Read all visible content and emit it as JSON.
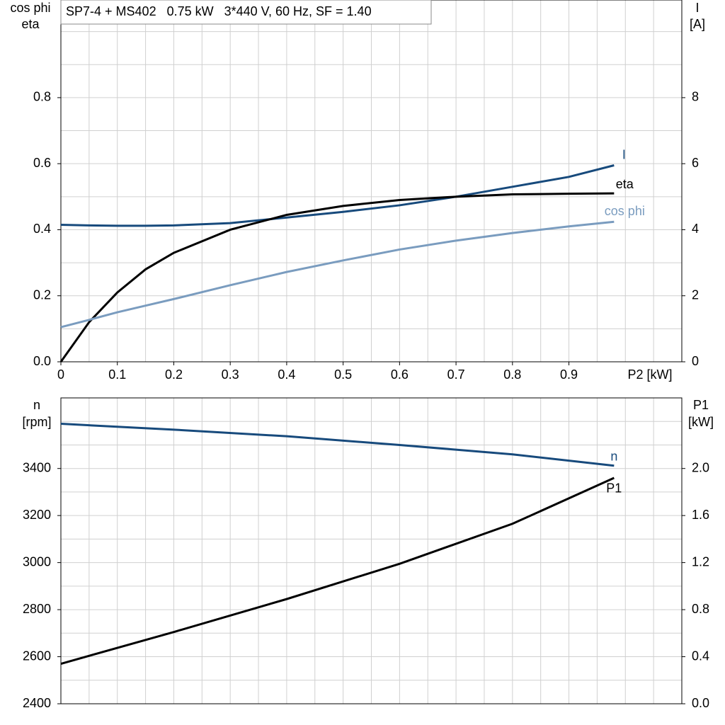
{
  "chart_data": [
    {
      "type": "line",
      "title": "SP7-4 + MS402   0.75 kW   3*440 V, 60 Hz, SF = 1.40",
      "xlabel": "P2 [kW]",
      "ylabel": [
        "cos phi",
        "eta"
      ],
      "y2label": [
        "I",
        "[A]"
      ],
      "x": [
        0,
        0.05,
        0.1,
        0.15,
        0.2,
        0.3,
        0.4,
        0.5,
        0.6,
        0.7,
        0.8,
        0.9,
        0.98
      ],
      "series": [
        {
          "name": "I",
          "color": "#174a7c",
          "axis": "y2",
          "values": [
            4.15,
            4.13,
            4.12,
            4.12,
            4.13,
            4.2,
            4.37,
            4.54,
            4.74,
            5.0,
            5.3,
            5.6,
            5.95
          ]
        },
        {
          "name": "eta",
          "color": "#000000",
          "values": [
            0,
            0.12,
            0.21,
            0.28,
            0.33,
            0.4,
            0.445,
            0.472,
            0.49,
            0.5,
            0.507,
            0.509,
            0.51
          ]
        },
        {
          "name": "cos phi",
          "color": "#7a9cbf",
          "values": [
            0.105,
            0.127,
            0.15,
            0.17,
            0.19,
            0.232,
            0.272,
            0.307,
            0.34,
            0.367,
            0.39,
            0.41,
            0.424
          ]
        }
      ],
      "xlim": [
        0,
        1.1
      ],
      "xticks": [
        0,
        0.1,
        0.2,
        0.3,
        0.4,
        0.5,
        0.6,
        0.7,
        0.8,
        0.9
      ],
      "x_grid": [
        0.05,
        0.1,
        0.15,
        0.2,
        0.25,
        0.3,
        0.35,
        0.4,
        0.45,
        0.5,
        0.55,
        0.6,
        0.65,
        0.7,
        0.75,
        0.8,
        0.85,
        0.9,
        0.95,
        1.0,
        1.05
      ],
      "ylim": [
        0,
        1.1
      ],
      "yticks": [
        {
          "value": 0,
          "label": "0.0"
        },
        0.2,
        0.4,
        0.6,
        0.8
      ],
      "y_grid": [
        0.1,
        0.2,
        0.3,
        0.4,
        0.5,
        0.6,
        0.7,
        0.8,
        0.9,
        1.0
      ],
      "y2lim": [
        0,
        11
      ],
      "y2ticks": [
        0,
        2,
        4,
        6,
        8
      ]
    },
    {
      "type": "line",
      "ylabel": [
        "n",
        "[rpm]"
      ],
      "y2label": [
        "P1",
        "[kW]"
      ],
      "x": [
        0,
        0.2,
        0.4,
        0.6,
        0.8,
        0.98
      ],
      "series": [
        {
          "name": "n",
          "color": "#174a7c",
          "values": [
            3590,
            3565,
            3537,
            3500,
            3460,
            3412
          ]
        },
        {
          "name": "P1",
          "color": "#000000",
          "axis": "y2",
          "values": [
            0.34,
            0.61,
            0.89,
            1.19,
            1.53,
            1.92
          ]
        }
      ],
      "xlim": [
        0,
        1.1
      ],
      "x_grid": [
        0.05,
        0.1,
        0.15,
        0.2,
        0.25,
        0.3,
        0.35,
        0.4,
        0.45,
        0.5,
        0.55,
        0.6,
        0.65,
        0.7,
        0.75,
        0.8,
        0.85,
        0.9,
        0.95,
        1.0,
        1.05
      ],
      "ylim": [
        2400,
        3700
      ],
      "yticks": [
        2400,
        2600,
        2800,
        3000,
        3200,
        3400
      ],
      "y_grid": [
        2500,
        2600,
        2700,
        2800,
        2900,
        3000,
        3100,
        3200,
        3300,
        3400,
        3500,
        3600
      ],
      "y2lim": [
        0,
        2.6
      ],
      "y2ticks": [
        {
          "value": 0,
          "label": "0.0"
        },
        0.4,
        0.8,
        1.2,
        1.6,
        {
          "value": 2,
          "label": "2.0"
        }
      ]
    }
  ]
}
